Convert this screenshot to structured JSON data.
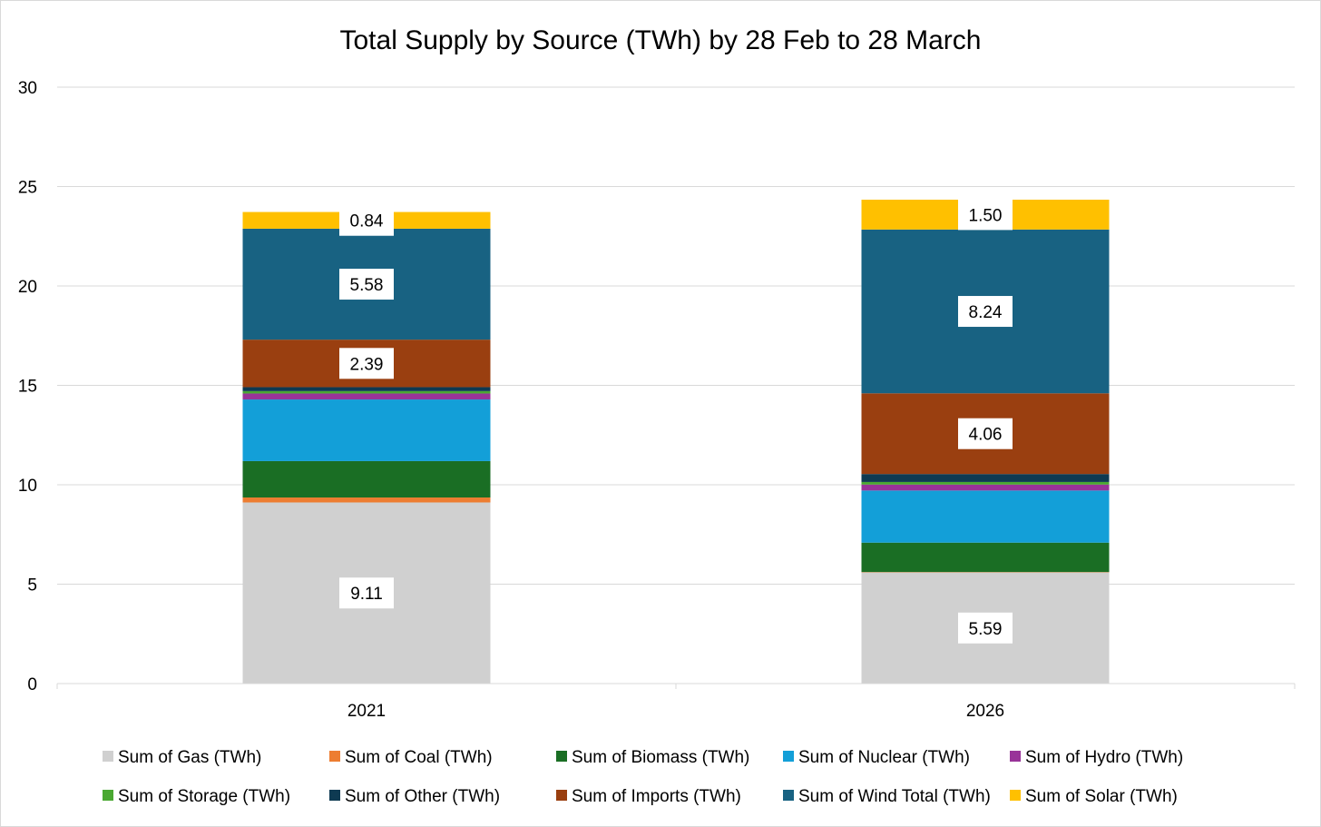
{
  "chart_data": {
    "type": "bar",
    "stacked": true,
    "title": "Total Supply by Source (TWh) by 28 Feb to 28 March",
    "xlabel": "",
    "ylabel": "",
    "categories": [
      "2021",
      "2026"
    ],
    "ylim": [
      0,
      30
    ],
    "yticks": [
      "0",
      "5",
      "10",
      "15",
      "20",
      "25",
      "30"
    ],
    "grid": true,
    "legend_position": "bottom",
    "series": [
      {
        "name": "Sum of Gas (TWh)",
        "color": "#d0d0d0",
        "values": [
          9.11,
          5.59
        ],
        "labels": [
          "9.11",
          "5.59"
        ]
      },
      {
        "name": "Sum of Coal (TWh)",
        "color": "#ed7d31",
        "values": [
          0.25,
          0.02
        ],
        "labels": [
          "",
          ""
        ]
      },
      {
        "name": "Sum of Biomass (TWh)",
        "color": "#1a6e24",
        "values": [
          1.83,
          1.48
        ],
        "labels": [
          "",
          ""
        ]
      },
      {
        "name": "Sum of Nuclear (TWh)",
        "color": "#139fd8",
        "values": [
          3.1,
          2.62
        ],
        "labels": [
          "",
          ""
        ]
      },
      {
        "name": "Sum of Hydro (TWh)",
        "color": "#993399",
        "values": [
          0.3,
          0.3
        ],
        "labels": [
          "",
          ""
        ]
      },
      {
        "name": "Sum of Storage (TWh)",
        "color": "#4aa832",
        "values": [
          0.12,
          0.13
        ],
        "labels": [
          "",
          ""
        ]
      },
      {
        "name": "Sum of Other (TWh)",
        "color": "#0e3a52",
        "values": [
          0.2,
          0.4
        ],
        "labels": [
          "",
          ""
        ]
      },
      {
        "name": "Sum of Imports (TWh)",
        "color": "#9a3f10",
        "values": [
          2.39,
          4.06
        ],
        "labels": [
          "2.39",
          "4.06"
        ]
      },
      {
        "name": "Sum of Wind Total (TWh)",
        "color": "#186282",
        "values": [
          5.58,
          8.24
        ],
        "labels": [
          "5.58",
          "8.24"
        ]
      },
      {
        "name": "Sum of Solar (TWh)",
        "color": "#ffc000",
        "values": [
          0.84,
          1.5
        ],
        "labels": [
          "0.84",
          "1.50"
        ]
      }
    ]
  }
}
